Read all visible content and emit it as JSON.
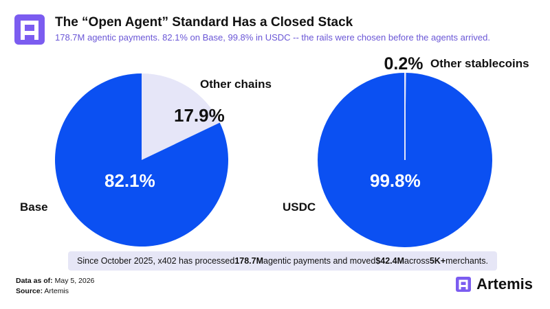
{
  "header": {
    "title": "The “Open Agent” Standard Has a Closed Stack",
    "subtitle": "178.7M agentic payments. 82.1% on Base, 99.8% in USDC -- the rails were chosen before the agents arrived."
  },
  "colors": {
    "primary": "#0b50f2",
    "secondary": "#e6e6f8",
    "note_bg": "#e6e6f6",
    "logo_bg": "#7b5cf0",
    "subtitle": "#6a56d6"
  },
  "icons": {
    "logo": "artemis-logo-icon"
  },
  "chart_data": [
    {
      "type": "pie",
      "slices": [
        {
          "label": "Base",
          "value": 82.1,
          "display": "82.1%",
          "color": "#0b50f2"
        },
        {
          "label": "Other chains",
          "value": 17.9,
          "display": "17.9%",
          "color": "#e6e6f8"
        }
      ]
    },
    {
      "type": "pie",
      "slices": [
        {
          "label": "USDC",
          "value": 99.8,
          "display": "99.8%",
          "color": "#0b50f2"
        },
        {
          "label": "Other stablecoins",
          "value": 0.2,
          "display": "0.2%",
          "color": "#e6e6f8"
        }
      ]
    }
  ],
  "note": {
    "p1": "Since October 2025, x402 has  processed ",
    "b1": "178.7M",
    "p2": " agentic payments and moved ",
    "b2": "$42.4M",
    "p3": " across ",
    "b3": "5K+",
    "p4": " merchants."
  },
  "footer": {
    "date_label": "Data as of:",
    "date_value": " May 5, 2026",
    "source_label": "Source:",
    "source_value": " Artemis",
    "brand": "Artemis"
  }
}
